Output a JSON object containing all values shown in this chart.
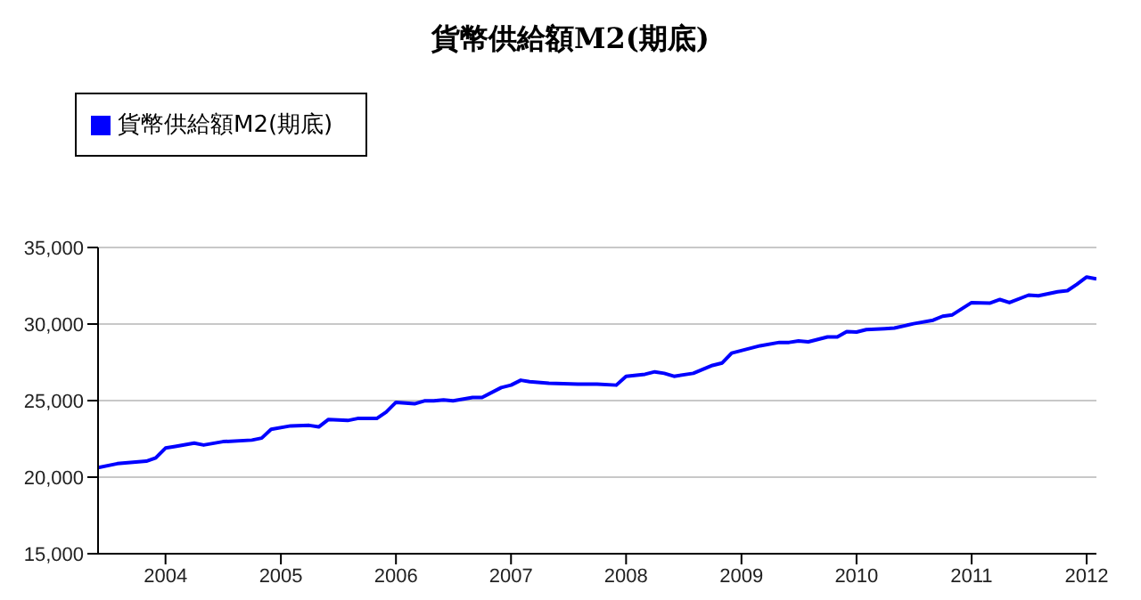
{
  "chart_data": {
    "type": "line",
    "title": "貨幣供給額M2(期底)",
    "x": [
      "2003-06",
      "2003-08",
      "2003-11",
      "2003-12",
      "2004-01",
      "2004-02",
      "2004-04",
      "2004-05",
      "2004-07",
      "2004-10",
      "2004-11",
      "2004-12",
      "2005-02",
      "2005-04",
      "2005-05",
      "2005-06",
      "2005-08",
      "2005-09",
      "2005-11",
      "2005-12",
      "2006-01",
      "2006-03",
      "2006-04",
      "2006-05",
      "2006-06",
      "2006-07",
      "2006-09",
      "2006-10",
      "2006-12",
      "2007-01",
      "2007-02",
      "2007-03",
      "2007-05",
      "2007-08",
      "2007-10",
      "2007-12",
      "2008-01",
      "2008-03",
      "2008-04",
      "2008-05",
      "2008-06",
      "2008-08",
      "2008-10",
      "2008-11",
      "2008-12",
      "2009-03",
      "2009-05",
      "2009-06",
      "2009-07",
      "2009-08",
      "2009-10",
      "2009-11",
      "2009-12",
      "2010-01",
      "2010-02",
      "2010-04",
      "2010-05",
      "2010-07",
      "2010-09",
      "2010-10",
      "2010-11",
      "2011-01",
      "2011-03",
      "2011-04",
      "2011-05",
      "2011-07",
      "2011-08",
      "2011-10",
      "2011-11",
      "2011-12",
      "2012-01",
      "2012-02"
    ],
    "series": [
      {
        "name": "貨幣供給額M2(期底)",
        "color": "#0000ff",
        "values": [
          20620,
          20880,
          21040,
          21260,
          21900,
          22000,
          22220,
          22100,
          22320,
          22420,
          22550,
          23120,
          23350,
          23380,
          23280,
          23770,
          23700,
          23830,
          23830,
          24250,
          24890,
          24790,
          24980,
          24980,
          25050,
          24980,
          25200,
          25200,
          25850,
          26010,
          26330,
          26240,
          26140,
          26080,
          26080,
          26010,
          26590,
          26720,
          26880,
          26780,
          26590,
          26780,
          27300,
          27460,
          28100,
          28580,
          28800,
          28800,
          28900,
          28840,
          29160,
          29160,
          29510,
          29480,
          29640,
          29700,
          29740,
          30020,
          30250,
          30510,
          30600,
          31400,
          31370,
          31600,
          31400,
          31890,
          31850,
          32110,
          32180,
          32600,
          33070,
          32950
        ]
      }
    ],
    "xlim": [
      "2003-06",
      "2012-02"
    ],
    "xticks": [
      {
        "value": "2004",
        "label": "2004"
      },
      {
        "value": "2005",
        "label": "2005"
      },
      {
        "value": "2006",
        "label": "2006"
      },
      {
        "value": "2007",
        "label": "2007"
      },
      {
        "value": "2008",
        "label": "2008"
      },
      {
        "value": "2009",
        "label": "2009"
      },
      {
        "value": "2010",
        "label": "2010"
      },
      {
        "value": "2011",
        "label": "2011"
      },
      {
        "value": "2012",
        "label": "2012"
      }
    ],
    "ylim": [
      15000,
      35000
    ],
    "yticks": [
      {
        "value": 15000,
        "label": "15,000"
      },
      {
        "value": 20000,
        "label": "20,000"
      },
      {
        "value": 25000,
        "label": "25,000"
      },
      {
        "value": 30000,
        "label": "30,000"
      },
      {
        "value": 35000,
        "label": "35,000"
      }
    ],
    "grid": "y",
    "legend": "top left",
    "marker": "none",
    "line_style": "solid"
  }
}
